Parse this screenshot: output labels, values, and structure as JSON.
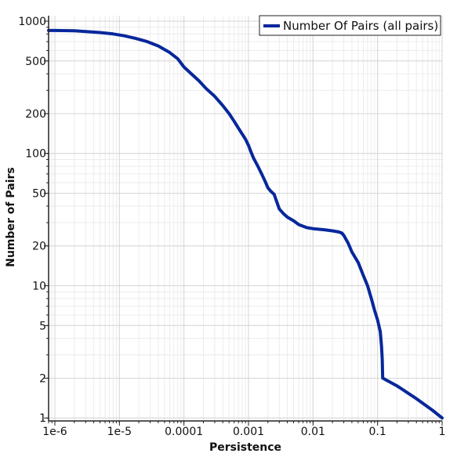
{
  "chart_data": {
    "type": "line",
    "title": "",
    "xlabel": "Persistence",
    "ylabel": "Number of Pairs",
    "x_scale": "log",
    "y_scale": "log",
    "xlim": [
      8e-07,
      1.0
    ],
    "ylim": [
      0.95,
      1100
    ],
    "grid": true,
    "legend_position": "top-right",
    "series_color": "#07279b",
    "x_ticks": [
      {
        "value": 1e-06,
        "label": "1e-6"
      },
      {
        "value": 1e-05,
        "label": "1e-5"
      },
      {
        "value": 0.0001,
        "label": "0.0001"
      },
      {
        "value": 0.001,
        "label": "0.001"
      },
      {
        "value": 0.01,
        "label": "0.01"
      },
      {
        "value": 0.1,
        "label": "0.1"
      },
      {
        "value": 1,
        "label": "1"
      }
    ],
    "y_ticks": [
      {
        "value": 1,
        "label": "1"
      },
      {
        "value": 2,
        "label": "2"
      },
      {
        "value": 5,
        "label": "5"
      },
      {
        "value": 10,
        "label": "10"
      },
      {
        "value": 20,
        "label": "20"
      },
      {
        "value": 50,
        "label": "50"
      },
      {
        "value": 100,
        "label": "100"
      },
      {
        "value": 200,
        "label": "200"
      },
      {
        "value": 500,
        "label": "500"
      },
      {
        "value": 1000,
        "label": "1000"
      }
    ],
    "series": [
      {
        "name": "Number Of Pairs (all pairs)",
        "x": [
          8e-07,
          1e-06,
          2e-06,
          3e-06,
          5e-06,
          8e-06,
          1.2e-05,
          1.8e-05,
          2.7e-05,
          4e-05,
          6e-05,
          8e-05,
          0.0001,
          0.00013,
          0.00017,
          0.00022,
          0.0003,
          0.0004,
          0.0005,
          0.0006,
          0.0007,
          0.0008,
          0.0009,
          0.001,
          0.0011,
          0.0012,
          0.0014,
          0.0016,
          0.0018,
          0.002,
          0.0022,
          0.0025,
          0.0027,
          0.003,
          0.0035,
          0.004,
          0.005,
          0.006,
          0.008,
          0.01,
          0.015,
          0.02,
          0.025,
          0.028,
          0.03,
          0.035,
          0.04,
          0.05,
          0.06,
          0.07,
          0.08,
          0.09,
          0.1,
          0.11,
          0.115,
          0.118,
          0.12,
          0.2,
          0.4,
          0.7,
          1.0
        ],
        "y": [
          850,
          850,
          845,
          835,
          820,
          800,
          775,
          740,
          700,
          650,
          580,
          520,
          450,
          400,
          355,
          310,
          270,
          230,
          200,
          175,
          155,
          140,
          128,
          115,
          102,
          92,
          80,
          70,
          62,
          55,
          52,
          49,
          44,
          38,
          35,
          33,
          31,
          29,
          27.5,
          27,
          26.5,
          26,
          25.5,
          25,
          24,
          21,
          18,
          15,
          12,
          10,
          8,
          6.5,
          5.5,
          4.5,
          3.5,
          2.8,
          2.0,
          1.75,
          1.4,
          1.15,
          1.0
        ]
      }
    ]
  }
}
